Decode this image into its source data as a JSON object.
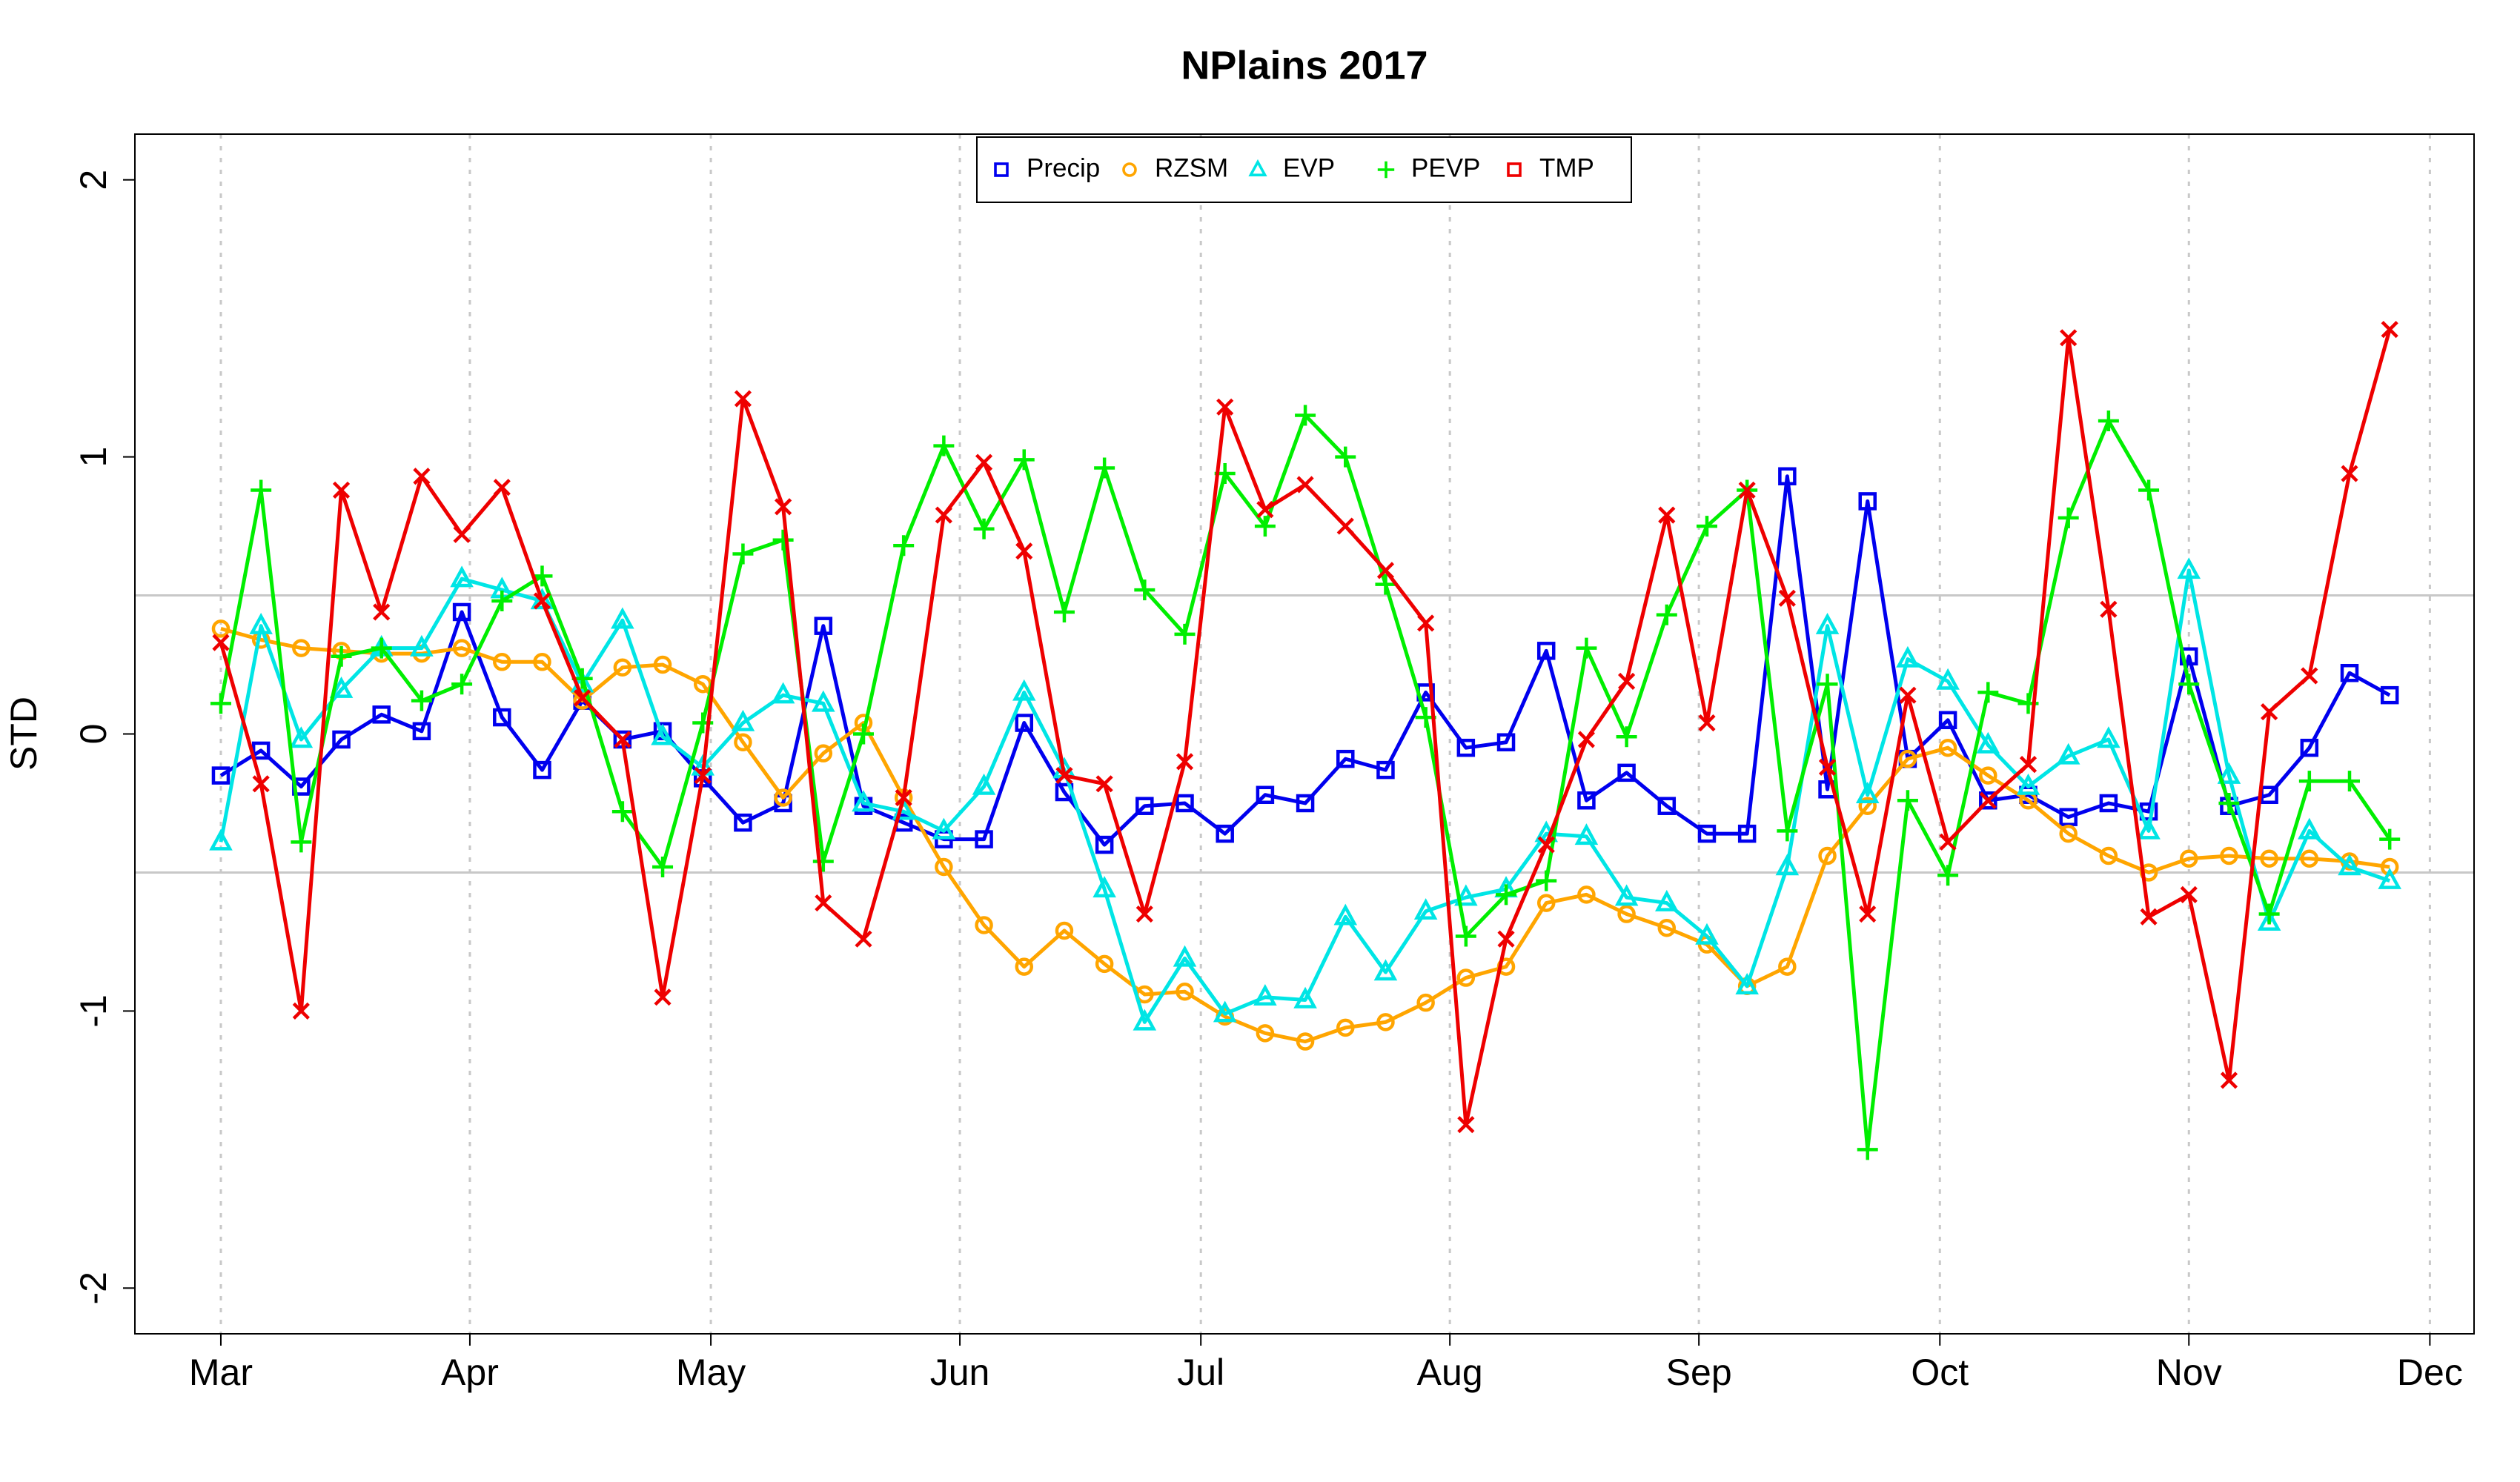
{
  "chart_data": {
    "type": "line",
    "title": "NPlains 2017",
    "y_label": "STD",
    "x": [
      0,
      1,
      2,
      3,
      4,
      5,
      6,
      7,
      8,
      9,
      10,
      11,
      12,
      13,
      14,
      15,
      16,
      17,
      18,
      19,
      20,
      21,
      22,
      23,
      24,
      25,
      26,
      27,
      28,
      29,
      30,
      31,
      32,
      33,
      34,
      35,
      36,
      37,
      38,
      39,
      40,
      41,
      42,
      43,
      44,
      45,
      46,
      47,
      48,
      49,
      50,
      51,
      52,
      53,
      54
    ],
    "xlim": [
      -2.14,
      56.1
    ],
    "xticks": [
      {
        "value": 0,
        "label": "Mar"
      },
      {
        "value": 6.2,
        "label": "Apr"
      },
      {
        "value": 12.2,
        "label": "May"
      },
      {
        "value": 18.4,
        "label": "Jun"
      },
      {
        "value": 24.4,
        "label": "Jul"
      },
      {
        "value": 30.6,
        "label": "Aug"
      },
      {
        "value": 36.8,
        "label": "Sep"
      },
      {
        "value": 42.8,
        "label": "Oct"
      },
      {
        "value": 49,
        "label": "Nov"
      },
      {
        "value": 55,
        "label": "Dec"
      }
    ],
    "ylim": [
      -2.165,
      2.165
    ],
    "yticks": [
      -2,
      -1,
      0,
      1,
      2
    ],
    "reference_lines": [
      -0.5,
      0.5
    ],
    "grid": true,
    "legend": "top",
    "series": [
      {
        "name": "Precip",
        "color": "#0000ee",
        "marker": "square",
        "values": [
          -0.15,
          -0.06,
          -0.19,
          -0.02,
          0.07,
          0.01,
          0.44,
          0.06,
          -0.13,
          0.12,
          -0.02,
          0.01,
          -0.16,
          -0.32,
          -0.25,
          0.39,
          -0.26,
          -0.32,
          -0.38,
          -0.38,
          0.04,
          -0.21,
          -0.4,
          -0.26,
          -0.25,
          -0.36,
          -0.22,
          -0.25,
          -0.09,
          -0.13,
          0.15,
          -0.05,
          -0.03,
          0.3,
          -0.24,
          -0.14,
          -0.26,
          -0.36,
          -0.36,
          0.93,
          -0.2,
          0.84,
          -0.09,
          0.05,
          -0.24,
          -0.22,
          -0.3,
          -0.25,
          -0.28,
          0.28,
          -0.26,
          -0.22,
          -0.05,
          0.22,
          0.14
        ]
      },
      {
        "name": "RZSM",
        "color": "#ffa500",
        "marker": "circle",
        "values": [
          0.38,
          0.34,
          0.31,
          0.3,
          0.29,
          0.29,
          0.31,
          0.26,
          0.26,
          0.12,
          0.24,
          0.25,
          0.18,
          -0.03,
          -0.23,
          -0.07,
          0.04,
          -0.23,
          -0.48,
          -0.69,
          -0.84,
          -0.71,
          -0.83,
          -0.94,
          -0.93,
          -1.02,
          -1.08,
          -1.11,
          -1.06,
          -1.04,
          -0.97,
          -0.88,
          -0.84,
          -0.61,
          -0.58,
          -0.65,
          -0.7,
          -0.76,
          -0.91,
          -0.84,
          -0.44,
          -0.26,
          -0.09,
          -0.05,
          -0.15,
          -0.24,
          -0.36,
          -0.44,
          -0.5,
          -0.45,
          -0.44,
          -0.45,
          -0.45,
          -0.46,
          -0.48
        ]
      },
      {
        "name": "EVP",
        "color": "#00e5e5",
        "marker": "triangle",
        "values": [
          -0.39,
          0.39,
          -0.02,
          0.16,
          0.31,
          0.31,
          0.56,
          0.52,
          0.48,
          0.18,
          0.41,
          -0.01,
          -0.12,
          0.04,
          0.14,
          0.11,
          -0.25,
          -0.28,
          -0.35,
          -0.19,
          0.15,
          -0.13,
          -0.56,
          -1.04,
          -0.81,
          -1.01,
          -0.95,
          -0.96,
          -0.66,
          -0.86,
          -0.64,
          -0.59,
          -0.56,
          -0.36,
          -0.37,
          -0.59,
          -0.61,
          -0.73,
          -0.91,
          -0.48,
          0.39,
          -0.22,
          0.27,
          0.19,
          -0.04,
          -0.19,
          -0.08,
          -0.02,
          -0.35,
          0.59,
          -0.15,
          -0.68,
          -0.35,
          -0.48,
          -0.53
        ]
      },
      {
        "name": "PEVP",
        "color": "#00ee00",
        "marker": "plus",
        "values": [
          0.11,
          0.88,
          -0.39,
          0.28,
          0.31,
          0.12,
          0.18,
          0.48,
          0.57,
          0.2,
          -0.28,
          -0.48,
          0.04,
          0.65,
          0.7,
          -0.46,
          0.0,
          0.68,
          1.04,
          0.74,
          0.99,
          0.44,
          0.96,
          0.52,
          0.36,
          0.94,
          0.75,
          1.15,
          1.0,
          0.54,
          0.06,
          -0.73,
          -0.58,
          -0.53,
          0.31,
          -0.01,
          0.43,
          0.75,
          0.88,
          -0.35,
          0.18,
          -1.5,
          -0.24,
          -0.51,
          0.15,
          0.11,
          0.78,
          1.13,
          0.88,
          0.18,
          -0.25,
          -0.65,
          -0.17,
          -0.17,
          -0.38
        ]
      },
      {
        "name": "TMP",
        "color": "#ee0000",
        "marker": "cross",
        "values": [
          0.33,
          -0.18,
          -1.0,
          0.88,
          0.44,
          0.93,
          0.72,
          0.89,
          0.48,
          0.13,
          -0.02,
          -0.95,
          -0.15,
          1.21,
          0.82,
          -0.61,
          -0.74,
          -0.23,
          0.79,
          0.98,
          0.66,
          -0.15,
          -0.18,
          -0.65,
          -0.1,
          1.18,
          0.81,
          0.9,
          0.75,
          0.59,
          0.4,
          -1.41,
          -0.74,
          -0.4,
          -0.02,
          0.19,
          0.79,
          0.04,
          0.88,
          0.49,
          -0.12,
          -0.65,
          0.14,
          -0.39,
          -0.24,
          -0.11,
          1.43,
          0.45,
          -0.66,
          -0.58,
          -1.25,
          0.08,
          0.21,
          0.94,
          1.46
        ]
      }
    ]
  }
}
